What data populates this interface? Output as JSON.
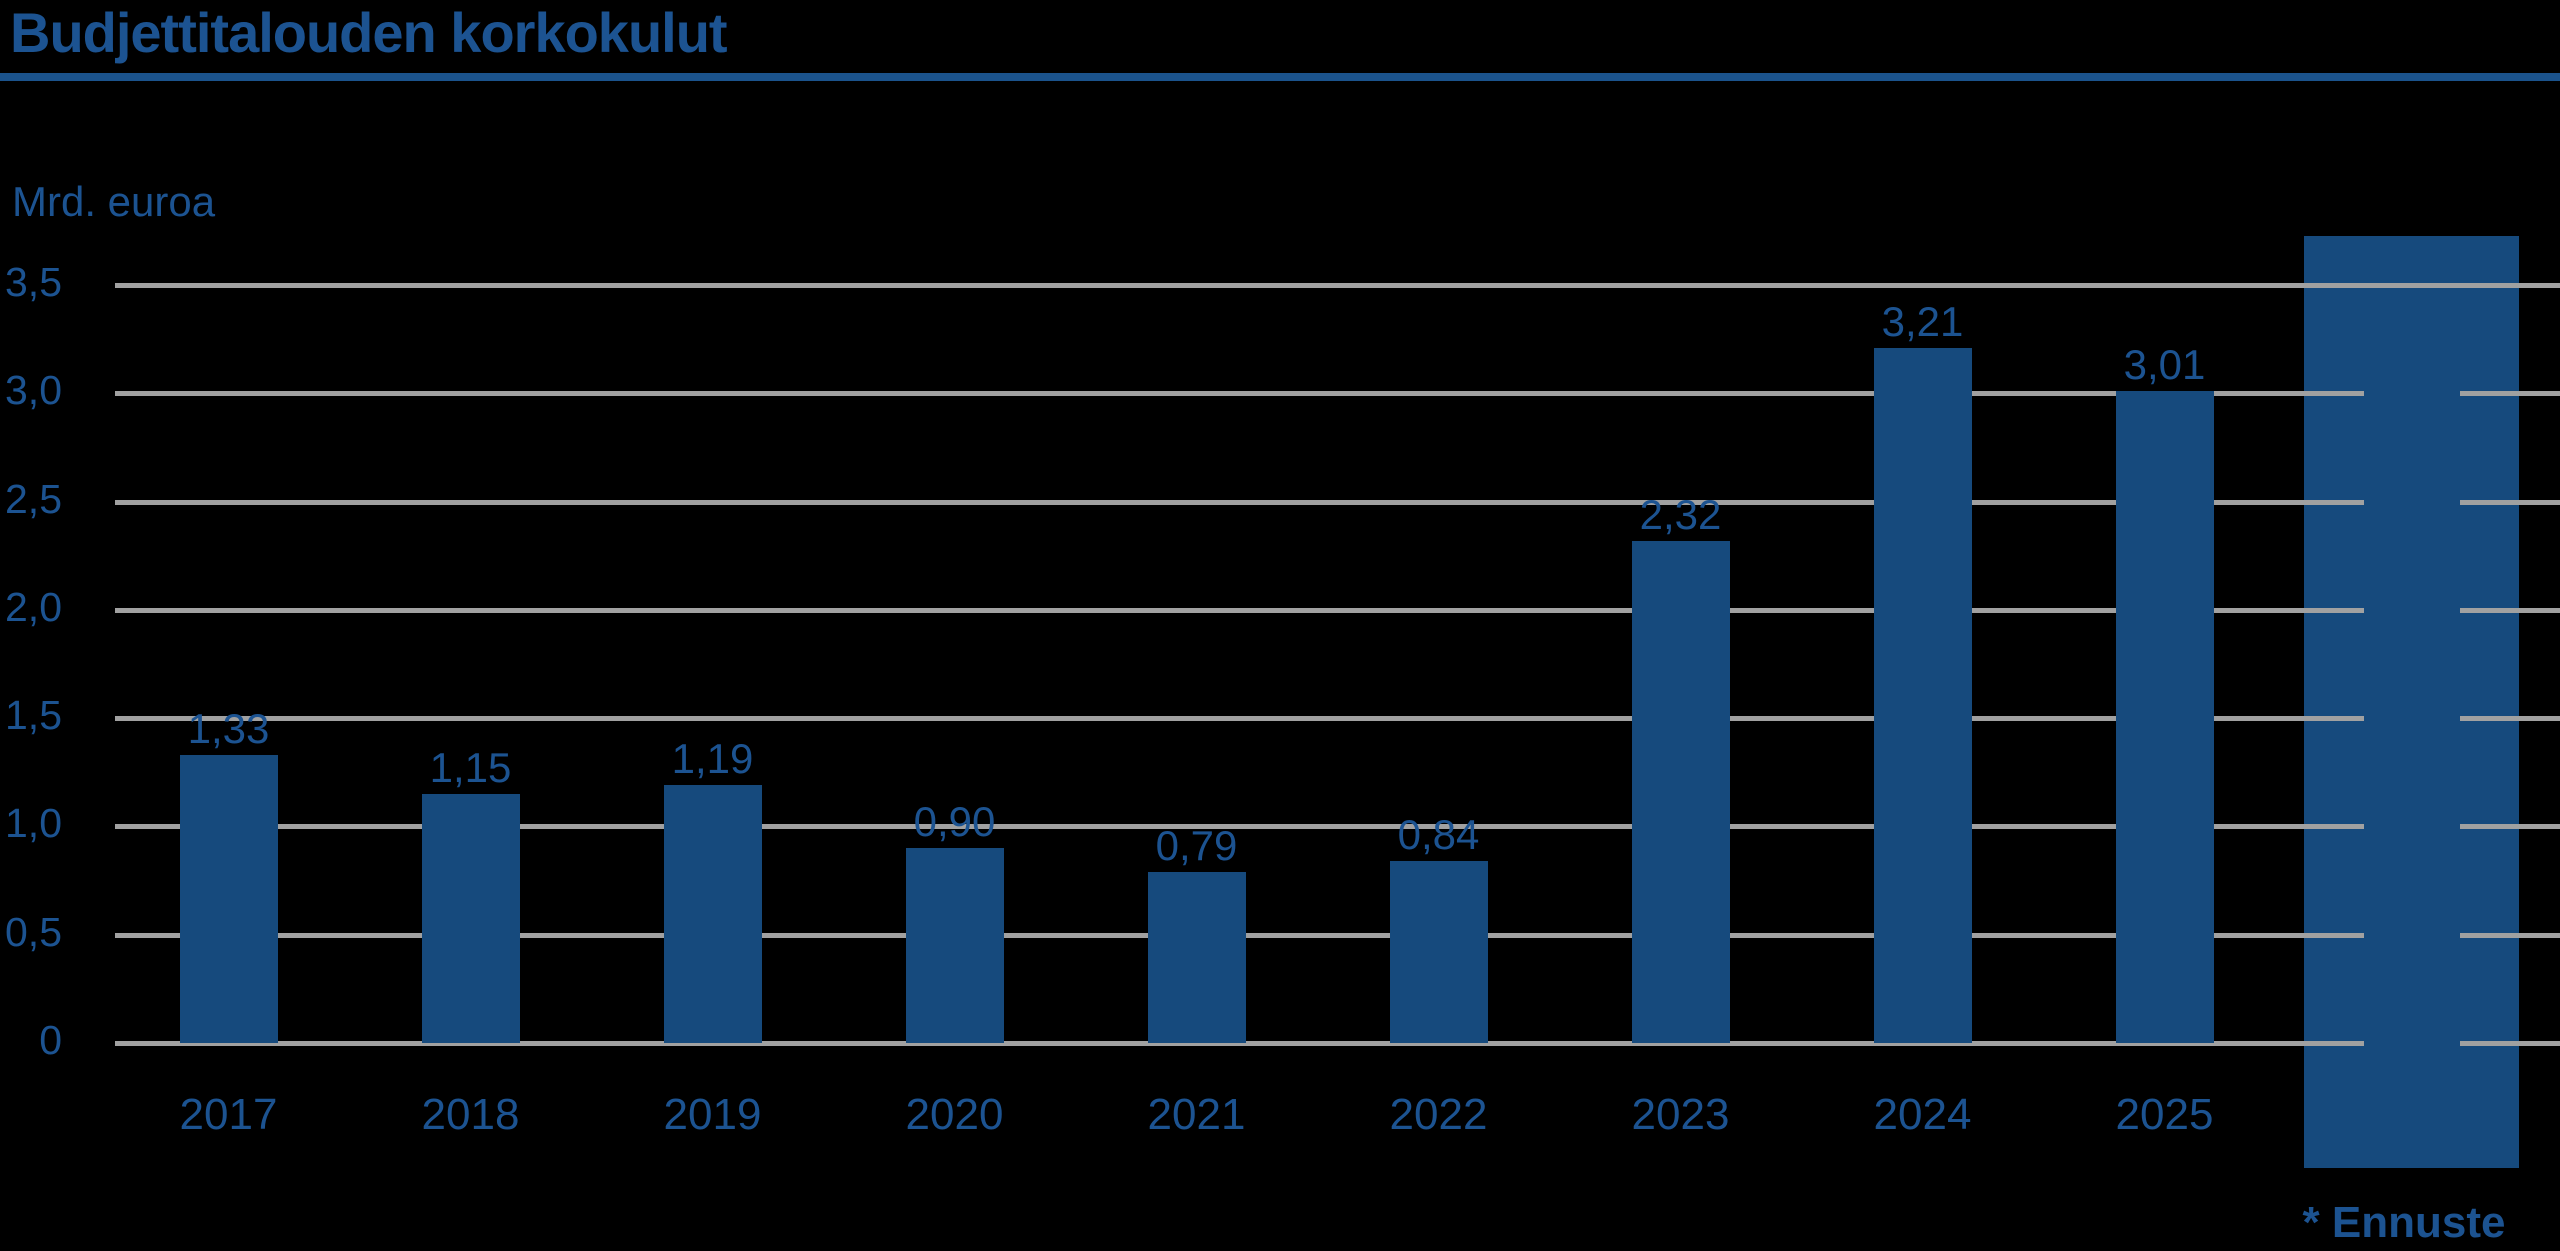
{
  "title": "Budjettitalouden korkokulut",
  "unit_label": "Mrd. euroa",
  "footnote": "* Ennuste",
  "colors": {
    "background": "#000000",
    "bar": "#164a7d",
    "text": "#1c5391",
    "grid": "#a1a1a1",
    "title_rule": "#1b538c"
  },
  "chart_data": {
    "type": "bar",
    "title": "Budjettitalouden korkokulut",
    "ylabel": "Mrd. euroa",
    "xlabel": "",
    "categories": [
      "2017",
      "2018",
      "2019",
      "2020",
      "2021",
      "2022",
      "2023",
      "2024",
      "2025"
    ],
    "values": [
      1.33,
      1.15,
      1.19,
      0.9,
      0.79,
      0.84,
      2.32,
      3.21,
      3.01
    ],
    "value_labels": [
      "1,33",
      "1,15",
      "1,19",
      "0,90",
      "0,79",
      "0,84",
      "2,32",
      "3,21",
      "3,01"
    ],
    "ylim": [
      0,
      3.5
    ],
    "ytick_step": 0.5,
    "ytick_labels": [
      "0",
      "0,5",
      "1,0",
      "1,5",
      "2,0",
      "2,5",
      "3,0",
      "3,5"
    ],
    "grid": true,
    "legend": "none",
    "forecast_band": {
      "note": "* Ennuste",
      "position": "after-2025"
    }
  }
}
